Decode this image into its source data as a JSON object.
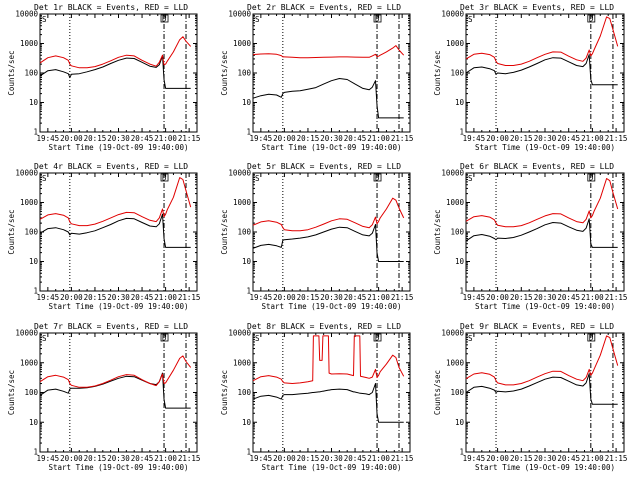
{
  "colors": {
    "events": "#000000",
    "lld": "#e00000",
    "frame": "#000000",
    "background": "#ffffff"
  },
  "shared": {
    "xlabel": "Start Time (19-Oct-09 19:40:00)",
    "ylabel": "Counts/sec",
    "x_tick_labels": [
      "19:45",
      "20:00",
      "20:15",
      "20:30",
      "20:45",
      "21:00",
      "21:15"
    ],
    "x_tick_minutes": [
      5,
      20,
      35,
      50,
      65,
      80,
      95
    ],
    "xlim_minutes": [
      0,
      100
    ],
    "y_tick_labels": [
      "1",
      "10",
      "100",
      "1000",
      "10000"
    ],
    "y_tick_values": [
      1,
      10,
      100,
      1000,
      10000
    ],
    "ylim": [
      1,
      10000
    ],
    "y_scale": "log",
    "marker_lines_minutes": [
      {
        "x": 19,
        "style": "dotted"
      },
      {
        "x": 79,
        "style": "dashdot"
      },
      {
        "x": 93,
        "style": "dashdot"
      }
    ],
    "corner_labels": [
      "S",
      "D"
    ]
  },
  "chart_data": [
    {
      "type": "line",
      "title": "Det 1r BLACK = Events, RED = LLD",
      "x": [
        0,
        5,
        10,
        15,
        18,
        19,
        20,
        25,
        30,
        35,
        40,
        45,
        50,
        55,
        60,
        65,
        70,
        74,
        76,
        78,
        79,
        80,
        81,
        85,
        89,
        91,
        93,
        96
      ],
      "series": [
        {
          "name": "Events",
          "color": "#000000",
          "values": [
            80,
            120,
            130,
            110,
            95,
            70,
            90,
            95,
            110,
            130,
            160,
            210,
            270,
            320,
            310,
            230,
            170,
            155,
            190,
            380,
            60,
            30,
            30,
            30,
            30,
            30,
            30,
            30
          ]
        },
        {
          "name": "LLD",
          "color": "#e00000",
          "values": [
            220,
            330,
            380,
            330,
            270,
            200,
            175,
            150,
            150,
            165,
            200,
            260,
            340,
            400,
            380,
            270,
            200,
            170,
            230,
            400,
            190,
            200,
            250,
            520,
            1350,
            1700,
            1200,
            800
          ]
        }
      ]
    },
    {
      "type": "line",
      "title": "Det 2r BLACK = Events, RED = LLD",
      "x": [
        0,
        5,
        10,
        15,
        18,
        19,
        20,
        25,
        30,
        35,
        40,
        45,
        50,
        55,
        60,
        65,
        70,
        74,
        76,
        78,
        79,
        80,
        81,
        85,
        89,
        91,
        93,
        96
      ],
      "series": [
        {
          "name": "Events",
          "color": "#000000",
          "values": [
            14,
            17,
            19,
            18,
            15,
            20,
            22,
            24,
            25,
            28,
            32,
            42,
            55,
            65,
            60,
            42,
            30,
            27,
            33,
            55,
            8,
            3,
            3,
            3,
            3,
            3,
            3,
            3
          ]
        },
        {
          "name": "LLD",
          "color": "#e00000",
          "values": [
            420,
            440,
            450,
            430,
            390,
            350,
            350,
            340,
            330,
            330,
            335,
            340,
            345,
            350,
            350,
            345,
            340,
            340,
            380,
            430,
            360,
            370,
            400,
            520,
            700,
            850,
            600,
            400
          ]
        }
      ]
    },
    {
      "type": "line",
      "title": "Det 3r BLACK = Events, RED = LLD",
      "x": [
        0,
        5,
        10,
        15,
        18,
        19,
        20,
        25,
        30,
        35,
        40,
        45,
        50,
        55,
        60,
        65,
        70,
        74,
        76,
        78,
        79,
        80,
        81,
        85,
        89,
        91,
        93,
        96
      ],
      "series": [
        {
          "name": "Events",
          "color": "#000000",
          "values": [
            100,
            150,
            160,
            140,
            120,
            90,
            100,
            95,
            105,
            125,
            160,
            210,
            280,
            330,
            320,
            240,
            180,
            165,
            210,
            420,
            60,
            40,
            40,
            40,
            40,
            40,
            40,
            40
          ]
        },
        {
          "name": "LLD",
          "color": "#e00000",
          "values": [
            300,
            430,
            470,
            420,
            340,
            250,
            210,
            180,
            180,
            200,
            250,
            330,
            430,
            520,
            510,
            370,
            280,
            250,
            320,
            600,
            380,
            450,
            600,
            1800,
            8000,
            7000,
            3000,
            800
          ]
        }
      ]
    },
    {
      "type": "line",
      "title": "Det 4r BLACK = Events, RED = LLD",
      "x": [
        0,
        5,
        10,
        15,
        18,
        19,
        20,
        25,
        30,
        35,
        40,
        45,
        50,
        55,
        60,
        65,
        70,
        74,
        76,
        78,
        79,
        80,
        81,
        85,
        89,
        91,
        93,
        96
      ],
      "series": [
        {
          "name": "Events",
          "color": "#000000",
          "values": [
            90,
            130,
            140,
            120,
            100,
            80,
            90,
            85,
            95,
            110,
            140,
            180,
            240,
            290,
            280,
            210,
            160,
            150,
            190,
            400,
            60,
            30,
            30,
            30,
            30,
            30,
            30,
            30
          ]
        },
        {
          "name": "LLD",
          "color": "#e00000",
          "values": [
            270,
            380,
            420,
            370,
            300,
            220,
            190,
            165,
            165,
            185,
            230,
            300,
            390,
            460,
            450,
            330,
            250,
            225,
            300,
            600,
            330,
            400,
            560,
            1500,
            7000,
            6000,
            2500,
            700
          ]
        }
      ]
    },
    {
      "type": "line",
      "title": "Det 5r BLACK = Events, RED = LLD",
      "x": [
        0,
        5,
        10,
        15,
        18,
        19,
        20,
        25,
        30,
        35,
        40,
        45,
        50,
        55,
        60,
        65,
        70,
        74,
        76,
        78,
        79,
        80,
        81,
        85,
        89,
        91,
        93,
        96
      ],
      "series": [
        {
          "name": "Events",
          "color": "#000000",
          "values": [
            28,
            35,
            38,
            34,
            30,
            52,
            55,
            58,
            62,
            68,
            80,
            100,
            125,
            145,
            140,
            105,
            80,
            74,
            90,
            180,
            20,
            10,
            10,
            10,
            10,
            10,
            10,
            10
          ]
        },
        {
          "name": "LLD",
          "color": "#e00000",
          "values": [
            170,
            220,
            240,
            215,
            180,
            140,
            120,
            110,
            110,
            120,
            145,
            185,
            240,
            280,
            270,
            205,
            155,
            140,
            175,
            320,
            190,
            230,
            300,
            600,
            1400,
            1200,
            650,
            300
          ]
        }
      ]
    },
    {
      "type": "line",
      "title": "Det 6r BLACK = Events, RED = LLD",
      "x": [
        0,
        5,
        10,
        15,
        18,
        19,
        20,
        25,
        30,
        35,
        40,
        45,
        50,
        55,
        60,
        65,
        70,
        74,
        76,
        78,
        79,
        80,
        81,
        85,
        89,
        91,
        93,
        96
      ],
      "series": [
        {
          "name": "Events",
          "color": "#000000",
          "values": [
            50,
            75,
            82,
            72,
            60,
            55,
            62,
            60,
            65,
            78,
            100,
            130,
            175,
            210,
            200,
            150,
            115,
            105,
            135,
            280,
            40,
            30,
            30,
            30,
            30,
            30,
            30,
            30
          ]
        },
        {
          "name": "LLD",
          "color": "#e00000",
          "values": [
            230,
            330,
            360,
            320,
            260,
            200,
            170,
            150,
            150,
            165,
            205,
            270,
            350,
            420,
            410,
            300,
            225,
            205,
            270,
            520,
            300,
            360,
            500,
            1400,
            6500,
            5500,
            2200,
            600
          ]
        }
      ]
    },
    {
      "type": "line",
      "title": "Det 7r BLACK = Events, RED = LLD",
      "x": [
        0,
        5,
        10,
        15,
        18,
        19,
        20,
        25,
        30,
        35,
        40,
        45,
        50,
        55,
        60,
        65,
        70,
        74,
        76,
        78,
        79,
        80,
        81,
        85,
        89,
        91,
        93,
        96
      ],
      "series": [
        {
          "name": "Events",
          "color": "#000000",
          "values": [
            80,
            120,
            130,
            110,
            95,
            130,
            140,
            140,
            145,
            160,
            190,
            240,
            300,
            350,
            340,
            260,
            200,
            185,
            230,
            450,
            60,
            30,
            30,
            30,
            30,
            30,
            30,
            30
          ]
        },
        {
          "name": "LLD",
          "color": "#e00000",
          "values": [
            230,
            340,
            380,
            330,
            270,
            200,
            175,
            150,
            150,
            165,
            200,
            260,
            340,
            400,
            380,
            270,
            200,
            170,
            230,
            420,
            200,
            210,
            260,
            560,
            1400,
            1700,
            1100,
            700
          ]
        }
      ]
    },
    {
      "type": "line",
      "title": "Det 8r BLACK = Events, RED = LLD",
      "x": [
        0,
        5,
        10,
        15,
        18,
        19,
        20,
        25,
        30,
        35,
        38,
        38.5,
        42,
        42.5,
        44,
        44.5,
        48,
        48.5,
        50,
        55,
        60,
        64,
        64.5,
        68,
        68.5,
        72,
        74,
        76,
        78,
        79,
        80,
        81,
        85,
        89,
        91,
        93,
        96
      ],
      "series": [
        {
          "name": "Events",
          "color": "#000000",
          "values": [
            60,
            75,
            80,
            70,
            60,
            80,
            85,
            85,
            90,
            95,
            100,
            100,
            105,
            105,
            110,
            110,
            120,
            120,
            125,
            130,
            125,
            105,
            105,
            95,
            95,
            90,
            85,
            100,
            200,
            20,
            10,
            10,
            10,
            10,
            10,
            10,
            10
          ]
        },
        {
          "name": "LLD",
          "color": "#e00000",
          "values": [
            250,
            340,
            370,
            330,
            280,
            230,
            210,
            200,
            210,
            230,
            250,
            8000,
            8000,
            1200,
            1200,
            8000,
            8000,
            450,
            420,
            430,
            420,
            370,
            8000,
            8000,
            350,
            320,
            300,
            330,
            600,
            320,
            380,
            500,
            900,
            1800,
            1500,
            700,
            350
          ]
        }
      ]
    },
    {
      "type": "line",
      "title": "Det 9r BLACK = Events, RED = LLD",
      "x": [
        0,
        5,
        10,
        15,
        18,
        19,
        20,
        25,
        30,
        35,
        40,
        45,
        50,
        55,
        60,
        65,
        70,
        74,
        76,
        78,
        79,
        80,
        81,
        85,
        89,
        91,
        93,
        96
      ],
      "series": [
        {
          "name": "Events",
          "color": "#000000",
          "values": [
            100,
            150,
            160,
            140,
            120,
            100,
            110,
            105,
            112,
            130,
            165,
            215,
            280,
            330,
            320,
            240,
            180,
            165,
            210,
            430,
            60,
            40,
            40,
            40,
            40,
            40,
            40,
            40
          ]
        },
        {
          "name": "LLD",
          "color": "#e00000",
          "values": [
            290,
            420,
            460,
            410,
            330,
            250,
            210,
            180,
            180,
            200,
            250,
            330,
            430,
            520,
            510,
            370,
            280,
            250,
            320,
            600,
            380,
            450,
            600,
            1800,
            8000,
            7000,
            3000,
            800
          ]
        }
      ]
    }
  ]
}
